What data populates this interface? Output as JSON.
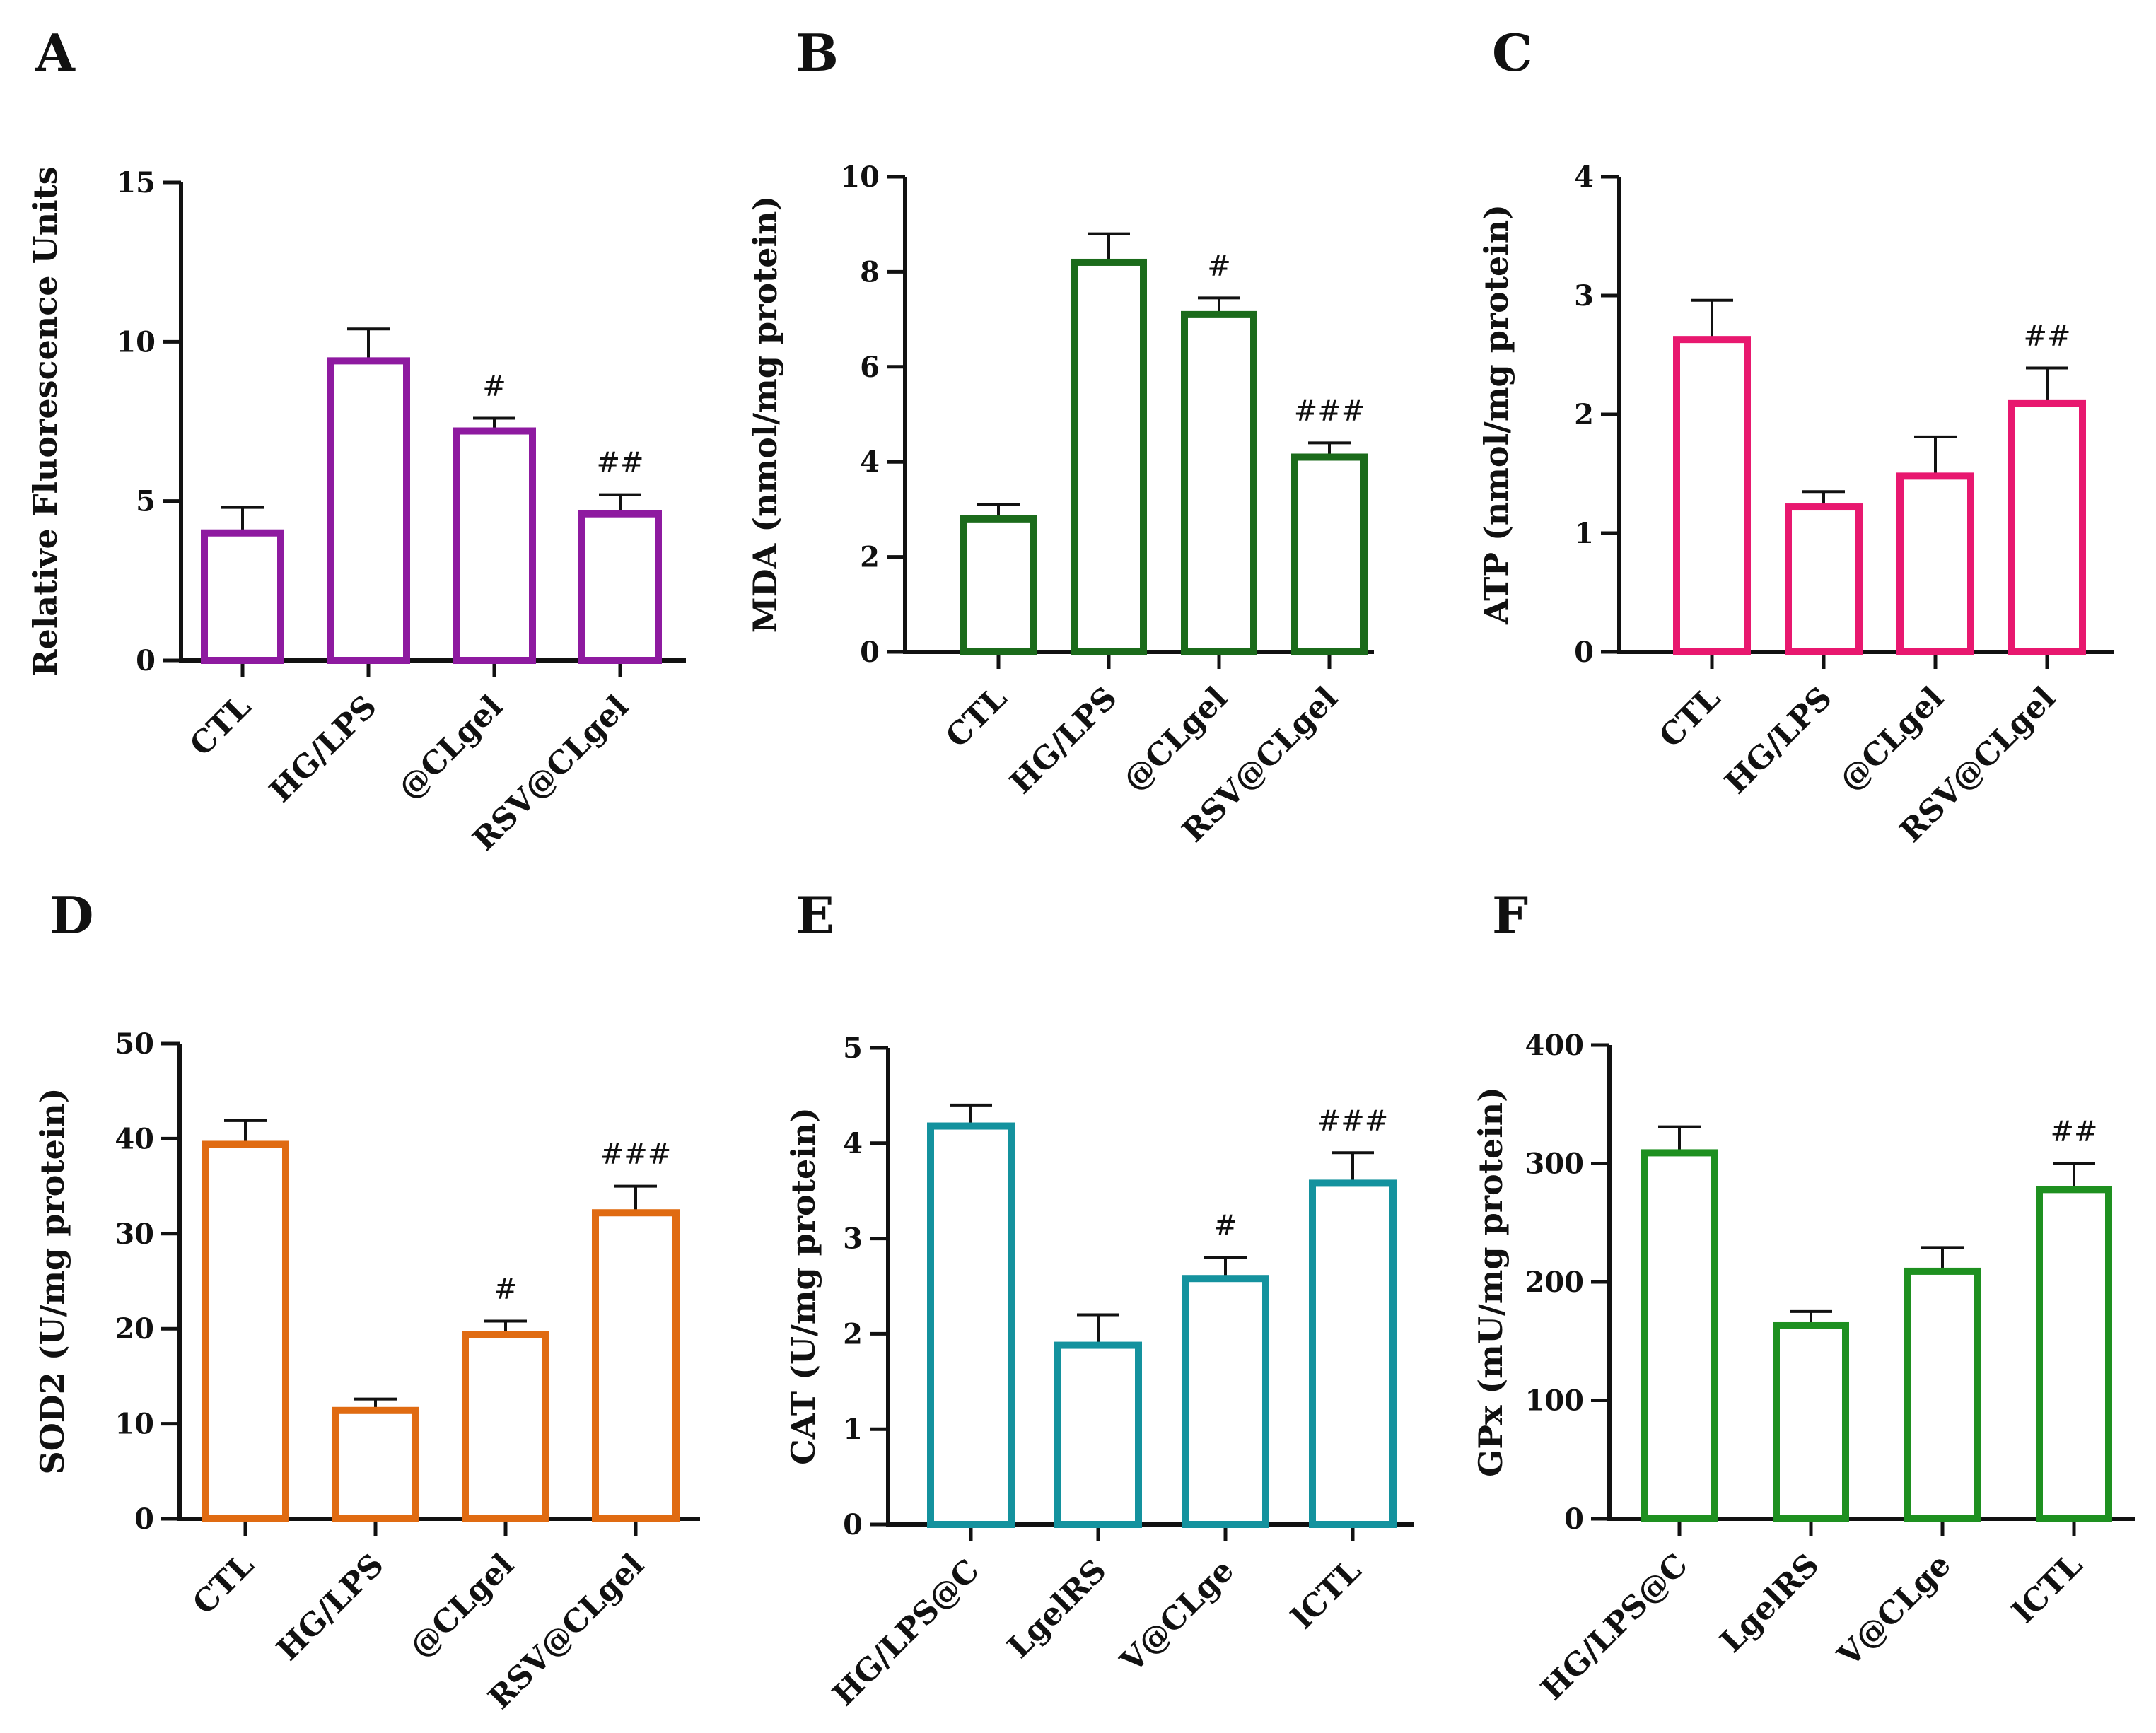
{
  "chart_data": [
    {
      "type": "bar",
      "panel": "A",
      "ylabel": "Relative Fluorescence Units",
      "ylim": [
        0,
        15
      ],
      "yticks": [
        0,
        5,
        10,
        15
      ],
      "color": "#8e1aa0",
      "categories": [
        "CTL",
        "HG/LPS",
        "@CLgel",
        "RSV@CLgel"
      ],
      "values": [
        4.0,
        9.4,
        7.2,
        4.6
      ],
      "errors": [
        0.8,
        1.0,
        0.4,
        0.6
      ],
      "annotations": [
        "",
        "",
        "#",
        "##"
      ]
    },
    {
      "type": "bar",
      "panel": "B",
      "ylabel": "MDA (nmol/mg protein)",
      "ylim": [
        0,
        10
      ],
      "yticks": [
        0,
        2,
        4,
        6,
        8,
        10
      ],
      "color": "#1b6b1b",
      "categories": [
        "CTL",
        "HG/LPS",
        "@CLgel",
        "RSV@CLgel"
      ],
      "values": [
        2.8,
        8.2,
        7.1,
        4.1
      ],
      "errors": [
        0.3,
        0.6,
        0.35,
        0.3
      ],
      "annotations": [
        "",
        "",
        "#",
        "###"
      ]
    },
    {
      "type": "bar",
      "panel": "C",
      "ylabel": "ATP (nmol/mg protein)",
      "ylim": [
        0,
        4
      ],
      "yticks": [
        0,
        1,
        2,
        3,
        4
      ],
      "color": "#e8186f",
      "categories": [
        "CTL",
        "HG/LPS",
        "@CLgel",
        "RSV@CLgel"
      ],
      "values": [
        2.63,
        1.22,
        1.48,
        2.09
      ],
      "errors": [
        0.33,
        0.13,
        0.33,
        0.3
      ],
      "annotations": [
        "",
        "",
        "",
        "##"
      ]
    },
    {
      "type": "bar",
      "panel": "D",
      "ylabel": "SOD2  (U/mg protein)",
      "ylim": [
        0,
        50
      ],
      "yticks": [
        0,
        10,
        20,
        30,
        40,
        50
      ],
      "color": "#e06b12",
      "categories": [
        "CTL",
        "HG/LPS",
        "@CLgel",
        "RSV@CLgel"
      ],
      "values": [
        39.4,
        11.4,
        19.4,
        32.2
      ],
      "errors": [
        2.5,
        1.2,
        1.4,
        2.8
      ],
      "annotations": [
        "",
        "",
        "#",
        "###"
      ]
    },
    {
      "type": "bar",
      "panel": "E",
      "ylabel": "CAT  (U/mg protein)",
      "ylim": [
        0,
        5
      ],
      "yticks": [
        0,
        1,
        2,
        3,
        4,
        5
      ],
      "color": "#14929e",
      "categories": [
        "HG/LPS@C",
        "LgelRS",
        "V@CLge",
        "lCTL"
      ],
      "values": [
        4.18,
        1.88,
        2.58,
        3.58
      ],
      "errors": [
        0.22,
        0.32,
        0.22,
        0.32
      ],
      "annotations": [
        "",
        "",
        "#",
        "###"
      ]
    },
    {
      "type": "bar",
      "panel": "F",
      "ylabel": "GPx (mU/mg protein)",
      "ylim": [
        0,
        400
      ],
      "yticks": [
        0,
        100,
        200,
        300,
        400
      ],
      "color": "#1e9020",
      "categories": [
        "HG/LPS@C",
        "LgelRS",
        "V@CLge",
        "lCTL"
      ],
      "values": [
        309,
        163,
        209,
        278
      ],
      "errors": [
        22,
        12,
        20,
        22
      ],
      "annotations": [
        "",
        "",
        "",
        "##"
      ]
    }
  ]
}
